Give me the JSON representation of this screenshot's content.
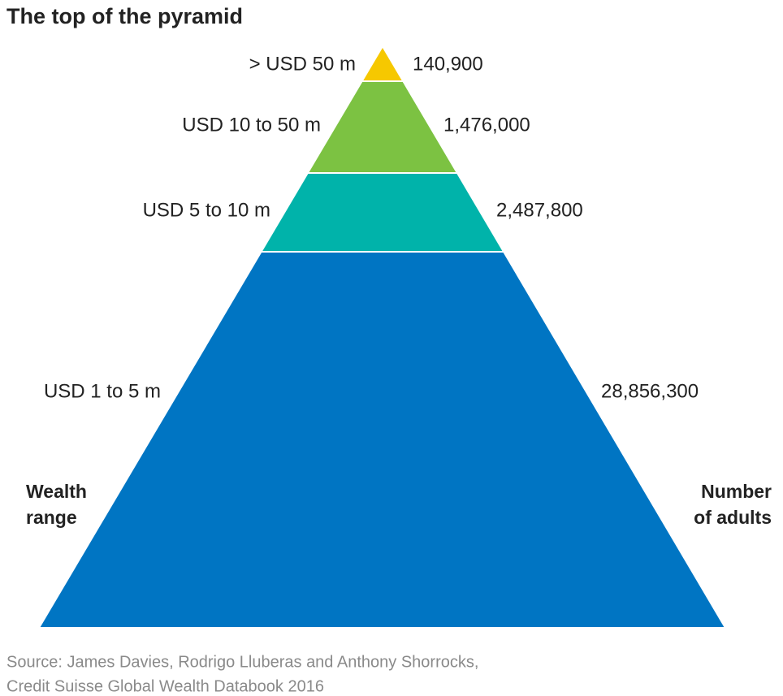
{
  "title": "The top of the pyramid",
  "tiers": [
    {
      "range": "> USD 50 m",
      "count": "140,900",
      "color": "#f6c800"
    },
    {
      "range": "USD 10 to 50 m",
      "count": "1,476,000",
      "color": "#7cc242"
    },
    {
      "range": "USD 5 to 10 m",
      "count": "2,487,800",
      "color": "#00b3aa"
    },
    {
      "range": "USD 1 to 5 m",
      "count": "28,856,300",
      "color": "#0075c3"
    }
  ],
  "left_heading": [
    "Wealth",
    "range"
  ],
  "right_heading": [
    "Number",
    "of adults"
  ],
  "source": [
    "Source: James Davies, Rodrigo Lluberas and Anthony Shorrocks,",
    "Credit Suisse Global Wealth Databook 2016"
  ]
}
